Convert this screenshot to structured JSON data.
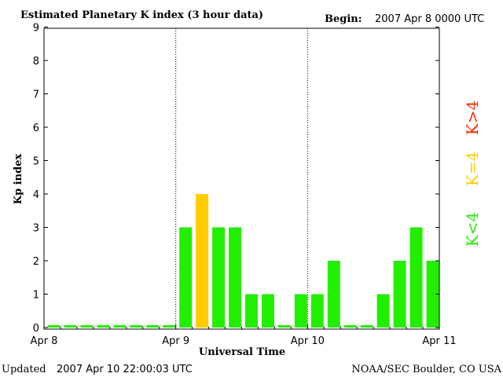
{
  "header": {
    "title": "Estimated Planetary K index (3 hour data)",
    "begin_label": "Begin:",
    "begin_value": "2007 Apr 8 0000 UTC"
  },
  "footer": {
    "updated_label": "Updated",
    "updated_value": "2007 Apr 10 22:00:03 UTC",
    "source": "NOAA/SEC Boulder, CO USA"
  },
  "legend": {
    "above": {
      "label": "K>4",
      "color": "#ff2a00"
    },
    "equal": {
      "label": "K=4",
      "color": "#ffcc00"
    },
    "below": {
      "label": "K<4",
      "color": "#22ee00"
    }
  },
  "chart_data": {
    "type": "bar",
    "title": "Estimated Planetary K index (3 hour data)",
    "xlabel": "Universal Time",
    "ylabel": "Kp index",
    "ylim": [
      0,
      9
    ],
    "yticks": [
      0,
      1,
      2,
      3,
      4,
      5,
      6,
      7,
      8,
      9
    ],
    "xticks": [
      "Apr 8",
      "Apr 9",
      "Apr 10",
      "Apr 11"
    ],
    "day_separators": [
      "Apr 9",
      "Apr 10"
    ],
    "interval_hours": 3,
    "categories": [
      "Apr 8 00",
      "Apr 8 03",
      "Apr 8 06",
      "Apr 8 09",
      "Apr 8 12",
      "Apr 8 15",
      "Apr 8 18",
      "Apr 8 21",
      "Apr 9 00",
      "Apr 9 03",
      "Apr 9 06",
      "Apr 9 09",
      "Apr 9 12",
      "Apr 9 15",
      "Apr 9 18",
      "Apr 9 21",
      "Apr 10 00",
      "Apr 10 03",
      "Apr 10 06",
      "Apr 10 09",
      "Apr 10 12",
      "Apr 10 15",
      "Apr 10 18",
      "Apr 10 21"
    ],
    "values": [
      0,
      0,
      0,
      0,
      0,
      0,
      0,
      0,
      3,
      4,
      3,
      3,
      1,
      1,
      0,
      1,
      1,
      2,
      0,
      0,
      1,
      2,
      3,
      2
    ],
    "colors": {
      "below": "#22ee00",
      "equal": "#ffcc00",
      "above": "#ff2a00"
    }
  }
}
